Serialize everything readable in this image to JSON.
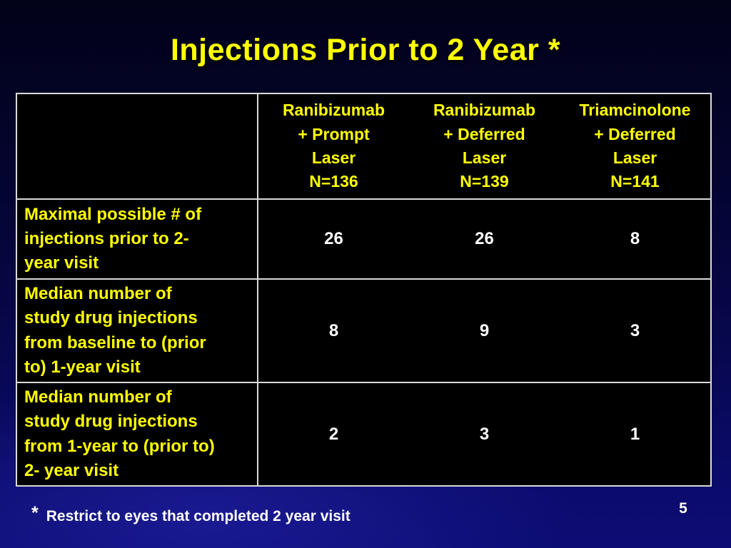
{
  "slide": {
    "title": "Injections Prior to 2 Year *",
    "page_number": "5",
    "footnote_marker": "*",
    "footnote_text": "Restrict to eyes that completed 2 year visit"
  },
  "table": {
    "columns": [
      {
        "label": "Ranibizumab\n+ Prompt\nLaser\nN=136"
      },
      {
        "label": "Ranibizumab\n+ Deferred\nLaser\nN=139"
      },
      {
        "label": "Triamcinolone\n+ Deferred\nLaser\nN=141"
      }
    ],
    "rows": [
      {
        "label": "Maximal possible # of\ninjections prior to 2-\nyear visit",
        "values": [
          "26",
          "26",
          "8"
        ]
      },
      {
        "label": "Median number of\nstudy drug injections\nfrom baseline to (prior\nto) 1-year visit",
        "values": [
          "8",
          "9",
          "3"
        ]
      },
      {
        "label": "Median number of\nstudy drug injections\nfrom 1-year to (prior to)\n2- year visit",
        "values": [
          "2",
          "3",
          "1"
        ]
      }
    ]
  },
  "colors": {
    "title_text": "#ffff00",
    "header_text": "#ffff00",
    "row_label_text": "#ffff00",
    "value_text": "#ffffff",
    "cell_background": "#000000",
    "table_border": "#d9d9d9",
    "background_top": "#020219",
    "background_bottom": "#0c0c74"
  }
}
